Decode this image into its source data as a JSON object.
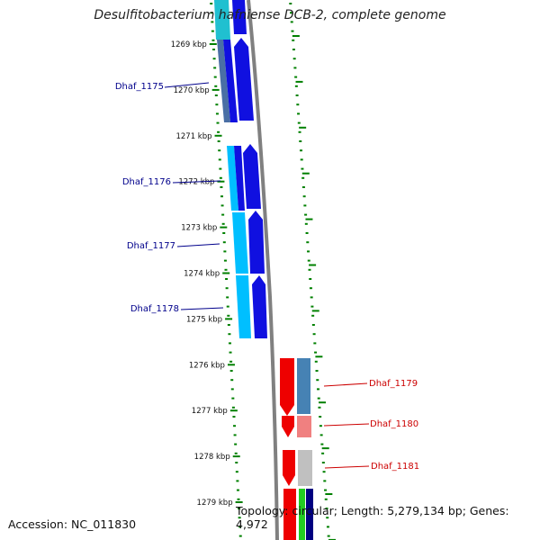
{
  "title": "Desulfitobacterium hafniense DCB-2, complete genome",
  "ticks": [
    "1269 kbp",
    "1270 kbp",
    "1271 kbp",
    "1272 kbp",
    "1273 kbp",
    "1274 kbp",
    "1275 kbp",
    "1276 kbp",
    "1277 kbp",
    "1278 kbp",
    "1279 kbp"
  ],
  "genes_left": [
    {
      "label": "Dhaf_1175",
      "color": "#00008b"
    },
    {
      "label": "Dhaf_1176",
      "color": "#00008b"
    },
    {
      "label": "Dhaf_1177",
      "color": "#00008b"
    },
    {
      "label": "Dhaf_1178",
      "color": "#00008b"
    }
  ],
  "genes_right": [
    {
      "label": "Dhaf_1179",
      "color": "#cc0000"
    },
    {
      "label": "Dhaf_1180",
      "color": "#cc0000"
    },
    {
      "label": "Dhaf_1181",
      "color": "#cc0000"
    }
  ],
  "accession": "Accession: NC_011830",
  "summary": "Topology: circular; Length: 5,279,134 bp; Genes: 4,972",
  "colors": {
    "backbone": "#808080",
    "tick": "#008000",
    "forward_strand": "#0000ee",
    "forward_cog": "#00bfff",
    "reverse_strand": "#ee0000",
    "reverse_cog": "#4682b4"
  }
}
